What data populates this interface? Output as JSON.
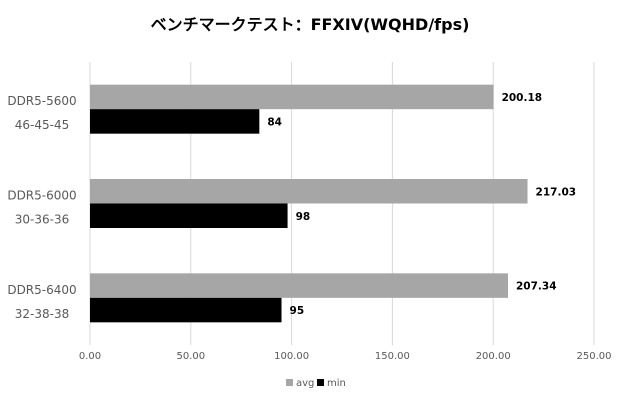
{
  "chart_data": {
    "type": "bar",
    "orientation": "horizontal",
    "title": "ベンチマークテスト：FFXIV(WQHD/fps)",
    "categories": [
      [
        "DDR5-5600",
        "46-45-45"
      ],
      [
        "DDR5-6000",
        "30-36-36"
      ],
      [
        "DDR5-6400",
        "32-38-38"
      ]
    ],
    "series": [
      {
        "name": "avg",
        "values": [
          200.18,
          217.03,
          207.34
        ],
        "labels": [
          "200.18",
          "217.03",
          "207.34"
        ],
        "color": "#a6a6a6"
      },
      {
        "name": "min",
        "values": [
          84,
          98,
          95
        ],
        "labels": [
          "84",
          "98",
          "95"
        ],
        "color": "#000000"
      }
    ],
    "xlim": [
      0,
      250
    ],
    "xticks": [
      "0.00",
      "50.00",
      "100.00",
      "150.00",
      "200.00",
      "250.00"
    ],
    "grid": true,
    "legend": "bottom",
    "xlabel": "",
    "ylabel": ""
  }
}
